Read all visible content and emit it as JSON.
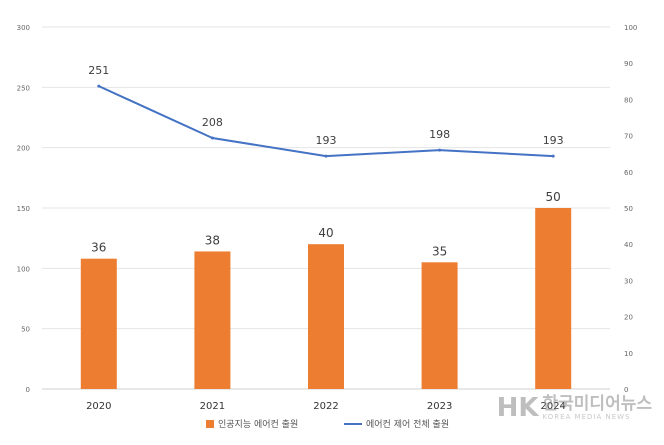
{
  "chart_data": {
    "type": "bar",
    "categories": [
      "2020",
      "2021",
      "2022",
      "2023",
      "2024"
    ],
    "series": [
      {
        "name": "인공지능 에어컨 출원",
        "type": "bar",
        "axis": "right",
        "values": [
          36,
          38,
          40,
          35,
          50
        ],
        "color": "#ED7D31"
      },
      {
        "name": "에어컨 제어 전체 출원",
        "type": "line",
        "axis": "left",
        "values": [
          251,
          208,
          193,
          198,
          193
        ],
        "color": "#4472C4"
      }
    ],
    "y_left": {
      "ylim": [
        0,
        300
      ],
      "ticks": [
        0,
        50,
        100,
        150,
        200,
        250,
        300
      ]
    },
    "y_right": {
      "ylim": [
        0,
        100
      ],
      "ticks": [
        0,
        10,
        20,
        30,
        40,
        50,
        60,
        70,
        80,
        90,
        100
      ]
    },
    "grid": true,
    "legend_position": "bottom",
    "title": "",
    "xlabel": "",
    "ylabel": ""
  },
  "watermark": {
    "logo_text": "HK",
    "text": "한국미디어뉴스",
    "subtext": "KOREA MEDIA NEWS"
  }
}
